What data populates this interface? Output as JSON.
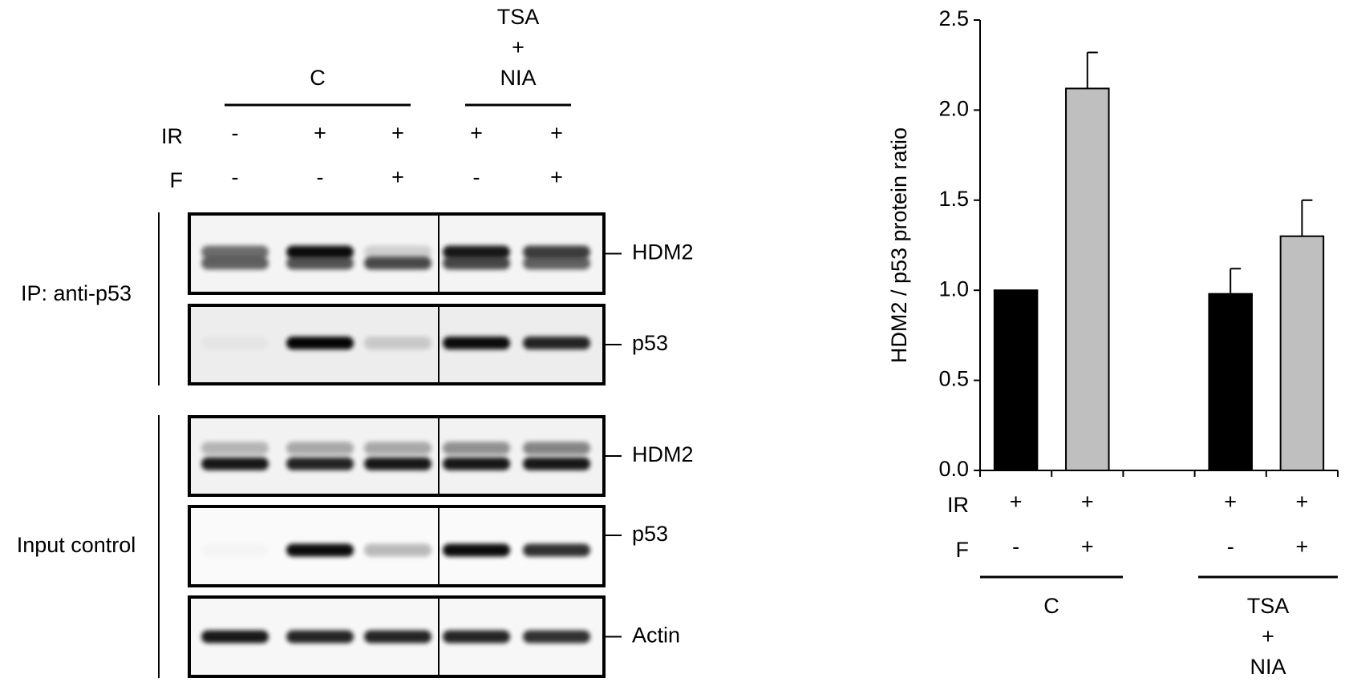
{
  "blot": {
    "groups": [
      [
        "C"
      ],
      [
        "TSA",
        "+",
        "NIA"
      ]
    ],
    "rows": [
      {
        "name": "IR",
        "values": [
          "-",
          "+",
          "+",
          "+",
          "+"
        ]
      },
      {
        "name": "F",
        "values": [
          "-",
          "-",
          "+",
          "-",
          "+"
        ]
      }
    ],
    "sections": [
      {
        "label": "IP: anti-p53",
        "panels": [
          "HDM2",
          "p53"
        ]
      },
      {
        "label": "Input control",
        "panels": [
          "HDM2",
          "p53",
          "Actin"
        ]
      }
    ]
  },
  "chart_data": {
    "type": "bar",
    "ylabel": "HDM2 / p53 protein ratio",
    "categories": [
      null,
      null,
      null,
      null,
      null
    ],
    "values": [
      1.0,
      2.12,
      null,
      0.98,
      1.3
    ],
    "errors": [
      0,
      0.2,
      null,
      0.14,
      0.2
    ],
    "colors": [
      "#000000",
      "#bfbfbf",
      null,
      "#000000",
      "#bfbfbf"
    ],
    "ylim": [
      0,
      2.5
    ],
    "yticks": [
      {
        "value": 0,
        "label": "0.0"
      },
      0.5,
      {
        "value": 1,
        "label": "1.0"
      },
      1.5,
      {
        "value": 2,
        "label": "2.0"
      },
      2.5
    ],
    "rows": [
      {
        "name": "IR",
        "values": [
          "+",
          "+",
          null,
          "+",
          "+"
        ]
      },
      {
        "name": "F",
        "values": [
          "-",
          "+",
          null,
          "-",
          "+"
        ]
      }
    ],
    "groups": [
      [
        "C"
      ],
      [
        "TSA",
        "+",
        "NIA"
      ]
    ]
  }
}
